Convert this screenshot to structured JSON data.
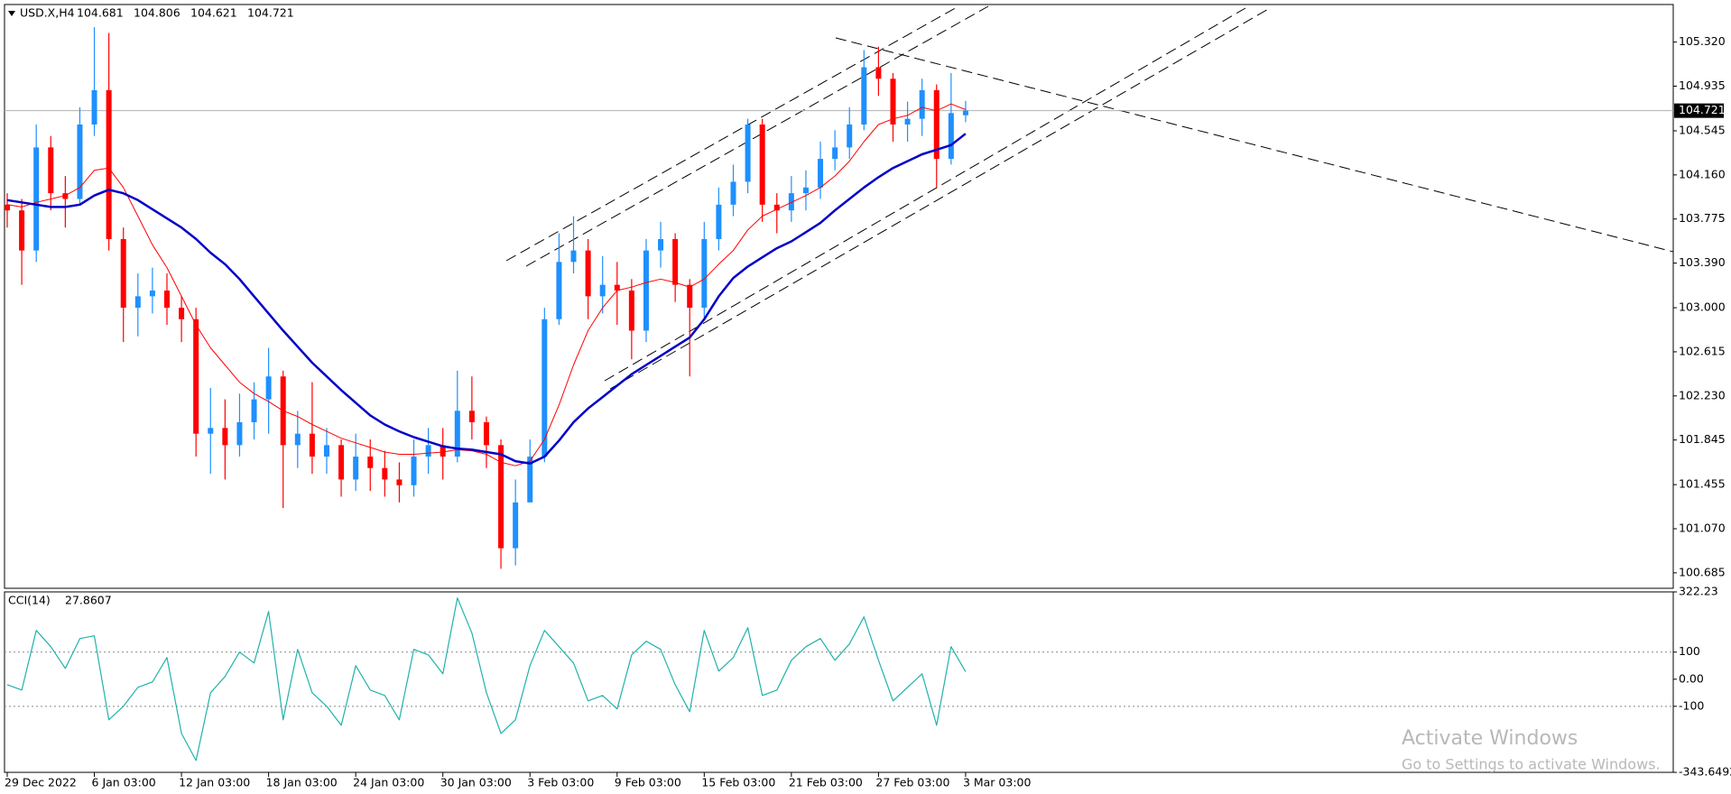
{
  "chart_data": [
    {
      "type": "candlestick",
      "title": "USD.X,H4",
      "categories": [
        "29 Dec 2022",
        null,
        null,
        null,
        null,
        null,
        "6 Jan 03:00",
        null,
        null,
        null,
        null,
        null,
        "12 Jan 03:00",
        null,
        null,
        null,
        null,
        null,
        "18 Jan 03:00",
        null,
        null,
        null,
        null,
        null,
        "24 Jan 03:00",
        null,
        null,
        null,
        null,
        null,
        "30 Jan 03:00",
        null,
        null,
        null,
        null,
        null,
        "3 Feb 03:00",
        null,
        null,
        null,
        null,
        null,
        "9 Feb 03:00",
        null,
        null,
        null,
        null,
        null,
        "15 Feb 03:00",
        null,
        null,
        null,
        null,
        null,
        "21 Feb 03:00",
        null,
        null,
        null,
        null,
        null,
        "27 Feb 03:00",
        null,
        null,
        null,
        null,
        null,
        "3 Mar 03:00"
      ],
      "open": [
        103.9,
        103.85,
        103.5,
        104.4,
        104.0,
        103.95,
        104.6,
        104.9,
        103.6,
        103.0,
        103.1,
        103.15,
        103.0,
        102.9,
        101.9,
        101.95,
        101.8,
        102.0,
        102.2,
        102.4,
        101.8,
        101.9,
        101.7,
        101.8,
        101.5,
        101.7,
        101.6,
        101.5,
        101.45,
        101.7,
        101.8,
        101.7,
        102.1,
        102.0,
        101.8,
        100.9,
        101.3,
        101.7,
        102.9,
        103.4,
        103.5,
        103.1,
        103.2,
        103.15,
        102.8,
        103.5,
        103.6,
        103.2,
        103.0,
        103.6,
        103.9,
        104.1,
        104.6,
        103.9,
        103.85,
        104.0,
        104.05,
        104.3,
        104.4,
        104.6,
        105.1,
        105.0,
        104.6,
        104.65,
        104.9,
        104.3,
        104.681
      ],
      "high": [
        104.0,
        103.95,
        104.6,
        104.5,
        104.15,
        104.75,
        105.45,
        105.4,
        103.7,
        103.3,
        103.35,
        103.3,
        103.1,
        103.0,
        102.3,
        102.2,
        102.25,
        102.35,
        102.65,
        102.45,
        102.1,
        102.35,
        101.95,
        101.85,
        101.9,
        101.85,
        101.75,
        101.65,
        101.85,
        101.95,
        101.95,
        102.45,
        102.4,
        102.05,
        101.85,
        101.5,
        101.85,
        103.0,
        103.65,
        103.8,
        103.6,
        103.45,
        103.4,
        103.25,
        103.6,
        103.75,
        103.65,
        103.25,
        103.75,
        104.05,
        104.25,
        104.65,
        104.65,
        104.0,
        104.15,
        104.2,
        104.45,
        104.55,
        104.75,
        105.25,
        105.28,
        105.05,
        104.8,
        105.0,
        104.95,
        105.05,
        104.806
      ],
      "low": [
        103.7,
        103.2,
        103.4,
        103.85,
        103.7,
        103.9,
        104.5,
        103.5,
        102.7,
        102.75,
        102.95,
        102.85,
        102.7,
        101.7,
        101.55,
        101.5,
        101.7,
        101.85,
        101.9,
        101.25,
        101.6,
        101.55,
        101.55,
        101.35,
        101.4,
        101.4,
        101.35,
        101.3,
        101.35,
        101.55,
        101.5,
        101.65,
        101.85,
        101.6,
        100.72,
        100.75,
        101.35,
        101.65,
        102.85,
        103.3,
        102.9,
        102.95,
        102.85,
        102.55,
        102.7,
        103.35,
        103.05,
        102.4,
        102.9,
        103.5,
        103.8,
        104.0,
        103.75,
        103.65,
        103.75,
        103.85,
        103.95,
        104.2,
        104.3,
        104.55,
        104.85,
        104.45,
        104.45,
        104.5,
        104.05,
        104.25,
        104.621
      ],
      "close": [
        103.85,
        103.5,
        104.4,
        104.0,
        103.95,
        104.6,
        104.9,
        103.6,
        103.0,
        103.1,
        103.15,
        103.0,
        102.9,
        101.9,
        101.95,
        101.8,
        102.0,
        102.2,
        102.4,
        101.8,
        101.9,
        101.7,
        101.8,
        101.5,
        101.7,
        101.6,
        101.5,
        101.45,
        101.7,
        101.8,
        101.7,
        102.1,
        102.0,
        101.8,
        100.9,
        101.3,
        101.7,
        102.9,
        103.4,
        103.5,
        103.1,
        103.2,
        103.15,
        102.8,
        103.5,
        103.6,
        103.2,
        103.0,
        103.6,
        103.9,
        104.1,
        104.6,
        103.9,
        103.85,
        104.0,
        104.05,
        104.3,
        104.4,
        104.6,
        105.1,
        105.0,
        104.6,
        104.65,
        104.9,
        104.3,
        104.7,
        104.721
      ],
      "up_color": "#1e90ff",
      "down_color": "#ff0000",
      "overlays": [
        {
          "color": "#ff0000",
          "width": 1,
          "values": [
            103.9,
            103.88,
            103.92,
            103.95,
            103.98,
            104.05,
            104.2,
            104.22,
            104.05,
            103.8,
            103.55,
            103.35,
            103.1,
            102.85,
            102.65,
            102.5,
            102.35,
            102.25,
            102.18,
            102.1,
            102.05,
            101.98,
            101.92,
            101.86,
            101.82,
            101.78,
            101.74,
            101.72,
            101.72,
            101.73,
            101.74,
            101.76,
            101.75,
            101.72,
            101.65,
            101.62,
            101.66,
            101.85,
            102.15,
            102.5,
            102.8,
            103.0,
            103.15,
            103.18,
            103.22,
            103.25,
            103.22,
            103.18,
            103.25,
            103.38,
            103.5,
            103.68,
            103.8,
            103.86,
            103.92,
            103.98,
            104.05,
            104.15,
            104.28,
            104.45,
            104.6,
            104.65,
            104.68,
            104.75,
            104.72,
            104.78,
            104.73
          ]
        },
        {
          "color": "#0000c8",
          "width": 2.5,
          "values": [
            103.94,
            103.92,
            103.9,
            103.88,
            103.88,
            103.9,
            103.98,
            104.03,
            104.0,
            103.94,
            103.86,
            103.78,
            103.7,
            103.6,
            103.48,
            103.38,
            103.25,
            103.1,
            102.95,
            102.8,
            102.66,
            102.52,
            102.4,
            102.28,
            102.17,
            102.06,
            101.98,
            101.92,
            101.87,
            101.83,
            101.79,
            101.77,
            101.76,
            101.74,
            101.72,
            101.66,
            101.64,
            101.7,
            101.84,
            102.0,
            102.12,
            102.22,
            102.32,
            102.42,
            102.5,
            102.58,
            102.66,
            102.74,
            102.9,
            103.1,
            103.26,
            103.36,
            103.44,
            103.52,
            103.58,
            103.66,
            103.74,
            103.85,
            103.95,
            104.05,
            104.14,
            104.22,
            104.28,
            104.34,
            104.38,
            104.42,
            104.52
          ]
        }
      ],
      "ylim": [
        100.55,
        105.648
      ],
      "yticks": [
        {
          "value": 105.32,
          "label": "105.320"
        },
        104.935,
        104.545,
        {
          "value": 104.16,
          "label": "104.160"
        },
        103.775,
        {
          "value": 103.39,
          "label": "103.390"
        },
        {
          "value": 103,
          "label": "103.000"
        },
        102.615,
        {
          "value": 102.23,
          "label": "102.230"
        },
        101.845,
        101.455,
        {
          "value": 101.07,
          "label": "101.070"
        },
        100.685
      ],
      "last_price_line": true
    },
    {
      "type": "line",
      "title": "CCI(14)",
      "series": [
        {
          "color": "#20b2aa",
          "values": [
            -20,
            -40,
            180,
            120,
            40,
            150,
            160,
            -150,
            -100,
            -30,
            -10,
            80,
            -200,
            -300,
            -50,
            10,
            100,
            60,
            250,
            -150,
            110,
            -50,
            -100,
            -170,
            50,
            -40,
            -60,
            -150,
            110,
            90,
            20,
            300,
            170,
            -50,
            -200,
            -150,
            50,
            180,
            120,
            60,
            -80,
            -60,
            -110,
            90,
            140,
            110,
            -20,
            -120,
            180,
            30,
            80,
            190,
            -60,
            -40,
            70,
            120,
            150,
            70,
            130,
            230,
            70,
            -80,
            -30,
            20,
            -170,
            120,
            27.8607
          ]
        }
      ],
      "ylim": [
        -343.6492,
        322.23
      ],
      "yticks": [
        322.23,
        100,
        {
          "value": 0,
          "label": "0.00"
        },
        -100,
        -343.6492
      ],
      "levels": [
        100,
        -100
      ]
    }
  ],
  "watermark": {
    "title": "Activate Windows",
    "subtitle": "Go to Settings to activate Windows."
  }
}
